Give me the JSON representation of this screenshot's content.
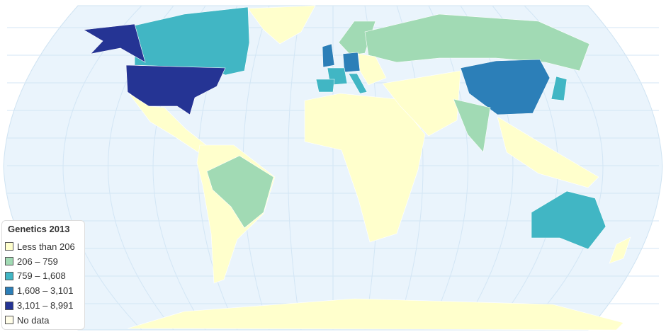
{
  "legend": {
    "title": "Genetics 2013",
    "items": [
      {
        "label": "Less than 206",
        "color": "#ffffcc"
      },
      {
        "label": "206 – 759",
        "color": "#a1dab4"
      },
      {
        "label": "759 – 1,608",
        "color": "#41b6c4"
      },
      {
        "label": "1,608 – 3,101",
        "color": "#2c7fb8"
      },
      {
        "label": "3,101 – 8,991",
        "color": "#253494"
      },
      {
        "label": "No data",
        "color": "#fffde8"
      }
    ]
  },
  "colors": {
    "ocean": "#eaf4fc",
    "graticule": "#d3e6f5"
  },
  "regions": {
    "united-states": "3,101 – 8,991",
    "alaska": "3,101 – 8,991",
    "china": "1,608 – 3,101",
    "germany": "1,608 – 3,101",
    "united-kingdom": "1,608 – 3,101",
    "canada": "759 – 1,608",
    "australia": "759 – 1,608",
    "japan": "759 – 1,608",
    "france": "759 – 1,608",
    "italy": "759 – 1,608",
    "spain": "759 – 1,608",
    "russia": "206 – 759",
    "brazil": "206 – 759",
    "india": "206 – 759",
    "scandinavia": "206 – 759"
  }
}
